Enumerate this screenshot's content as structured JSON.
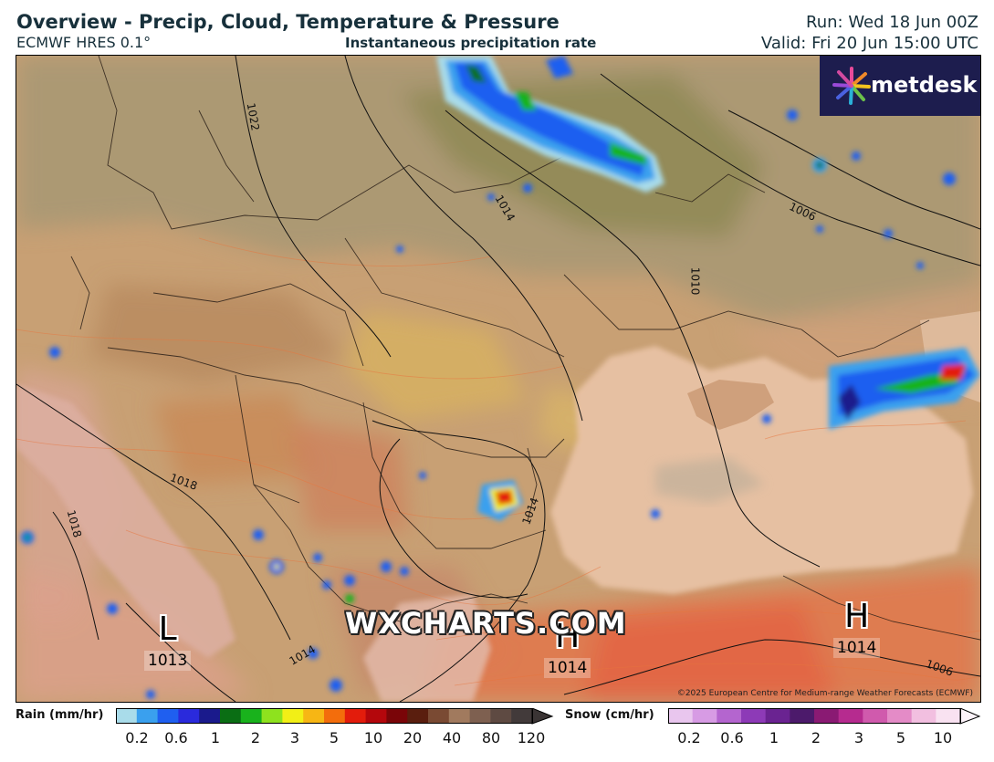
{
  "header": {
    "title": "Overview - Precip, Cloud, Temperature & Pressure",
    "model": "ECMWF HRES 0.1°",
    "subtitle": "Instantaneous precipitation rate",
    "run": "Run: Wed 18 Jun 00Z",
    "valid": "Valid: Fri 20 Jun 15:00 UTC"
  },
  "logo": {
    "text": "metdesk"
  },
  "watermark": "WXCHARTS.COM",
  "copyright": "©2025 European Centre for Medium-range Weather Forecasts (ECMWF)",
  "pressure_centers": [
    {
      "letter": "L",
      "value": "1013"
    },
    {
      "letter": "H",
      "value": "1014"
    },
    {
      "letter": "H",
      "value": "1014"
    }
  ],
  "isobar_labels": [
    "1022",
    "1014",
    "1010",
    "1006",
    "1018",
    "1018",
    "1014",
    "1014",
    "1006"
  ],
  "legend": {
    "rain": {
      "title": "Rain (mm/hr)",
      "ticks": [
        "0.2",
        "0.6",
        "1",
        "2",
        "3",
        "5",
        "10",
        "20",
        "40",
        "80",
        "120"
      ],
      "colors": [
        "#a9dcea",
        "#3aa0ee",
        "#1f5ff0",
        "#2a2adc",
        "#1a1a8c",
        "#0a6e14",
        "#19b21c",
        "#8ee21e",
        "#f2ef16",
        "#f7b614",
        "#f36d0c",
        "#e31c0c",
        "#b4070c",
        "#7a0508",
        "#5a1e0e",
        "#7a4a33",
        "#a17a5e",
        "#7e6050",
        "#5e4a42",
        "#423a3a"
      ]
    },
    "snow": {
      "title": "Snow (cm/hr)",
      "ticks": [
        "0.2",
        "0.6",
        "1",
        "2",
        "3",
        "5",
        "10"
      ],
      "colors": [
        "#e9c6ee",
        "#d79be4",
        "#b465cf",
        "#8d3ab7",
        "#6a2391",
        "#4c1a6b",
        "#8a1a73",
        "#b62b8f",
        "#d05aad",
        "#e48bc7",
        "#f2bfe0",
        "#f9e2f1"
      ]
    }
  },
  "colors": {
    "sea": "#e9c4a8",
    "land_warm": "#d99868",
    "land_hot": "#e0684a",
    "cloud": "#a89a72",
    "forest": "#8a8a4a"
  }
}
